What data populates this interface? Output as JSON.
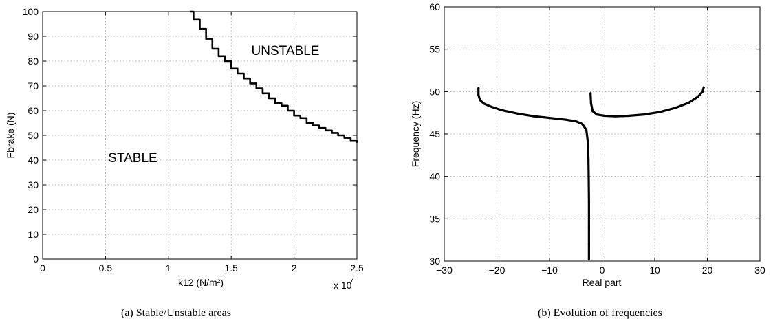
{
  "chart_data": [
    {
      "type": "line",
      "caption": "(a)  Stable/Unstable areas",
      "xlabel": "k12 (N/m²)",
      "ylabel": "Fbrake (N)",
      "x_multiplier_label": "x 10",
      "x_multiplier_exp": "7",
      "xlim": [
        0,
        2.5
      ],
      "ylim": [
        0,
        100
      ],
      "xticks": [
        0,
        0.5,
        1,
        1.5,
        2,
        2.5
      ],
      "xtick_labels": [
        "0",
        "0.5",
        "1",
        "1.5",
        "2",
        "2.5"
      ],
      "yticks": [
        0,
        10,
        20,
        30,
        40,
        50,
        60,
        70,
        80,
        90,
        100
      ],
      "ytick_labels": [
        "0",
        "10",
        "20",
        "30",
        "40",
        "50",
        "60",
        "70",
        "80",
        "90",
        "100"
      ],
      "grid": true,
      "annotations": [
        {
          "text": "UNSTABLE",
          "x": 1.95,
          "y": 85
        },
        {
          "text": "STABLE",
          "x": 0.6,
          "y": 40
        }
      ],
      "series": [
        {
          "x": [
            1.17,
            1.2,
            1.25,
            1.3,
            1.35,
            1.4,
            1.45,
            1.5,
            1.55,
            1.6,
            1.65,
            1.7,
            1.75,
            1.8,
            1.85,
            1.9,
            1.95,
            2.0,
            2.05,
            2.1,
            2.15,
            2.2,
            2.25,
            2.3,
            2.35,
            2.4,
            2.45,
            2.5
          ],
          "y": [
            100,
            97,
            93,
            89,
            85,
            82,
            80,
            77,
            75,
            73,
            71,
            69,
            67,
            65,
            63,
            62,
            60,
            58,
            57,
            55,
            54,
            53,
            52,
            51,
            50,
            49,
            48,
            47
          ]
        }
      ]
    },
    {
      "type": "scatter",
      "caption": "(b)  Evolution of frequencies",
      "xlabel": "Real part",
      "ylabel": "Frequency (Hz)",
      "xlim": [
        -30,
        30
      ],
      "ylim": [
        30,
        60
      ],
      "xticks": [
        -30,
        -20,
        -10,
        0,
        10,
        20,
        30
      ],
      "xtick_labels": [
        "−30",
        "−20",
        "−10",
        "0",
        "10",
        "20",
        "30"
      ],
      "yticks": [
        30,
        35,
        40,
        45,
        50,
        55,
        60
      ],
      "ytick_labels": [
        "30",
        "35",
        "40",
        "45",
        "50",
        "55",
        "60"
      ],
      "grid": true,
      "series": [
        {
          "x": [
            -23.5,
            -23.5,
            -23.2,
            -22.5,
            -21.0,
            -19.0,
            -16.0,
            -13.0,
            -10.0,
            -7.0,
            -5.0,
            -3.8,
            -3.0,
            -2.7,
            -2.6,
            -2.55,
            -2.5,
            -2.5,
            -2.5,
            -2.5
          ],
          "y": [
            50.4,
            49.6,
            49.0,
            48.6,
            48.2,
            47.8,
            47.4,
            47.1,
            46.9,
            46.7,
            46.5,
            46.2,
            45.5,
            44.0,
            42.0,
            40.0,
            37.0,
            34.0,
            32.0,
            30.2
          ]
        },
        {
          "x": [
            -2.2,
            -2.1,
            -1.8,
            -1.0,
            0.5,
            2.5,
            5.0,
            8.0,
            11.0,
            14.0,
            16.5,
            18.2,
            19.1,
            19.3
          ],
          "y": [
            49.8,
            48.6,
            47.7,
            47.3,
            47.15,
            47.1,
            47.15,
            47.3,
            47.6,
            48.1,
            48.7,
            49.4,
            50.0,
            50.5
          ]
        }
      ]
    }
  ]
}
